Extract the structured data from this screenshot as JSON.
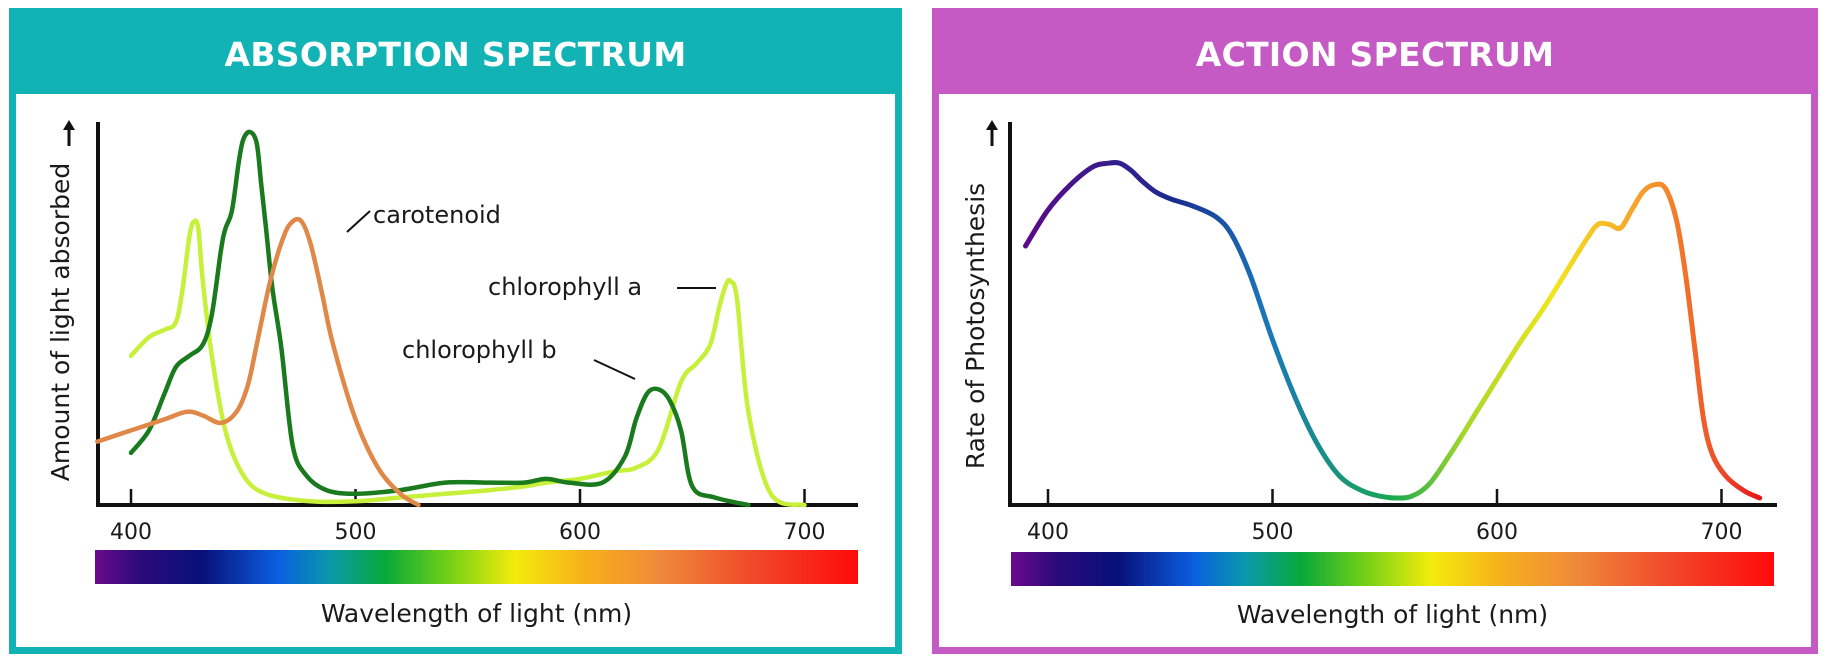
{
  "colors": {
    "absorption_frame": "#12b3b5",
    "action_frame": "#c65ac4",
    "chlorophyll_a": "#c7f03a",
    "chlorophyll_b": "#1a7a1e",
    "carotenoid": "#e08848"
  },
  "chart_data": [
    {
      "type": "line",
      "title": "ABSORPTION SPECTRUM",
      "xlabel": "Wavelength of light (nm)",
      "ylabel": "Amount of light absorbed",
      "xlim": [
        385,
        720
      ],
      "ylim": [
        0,
        100
      ],
      "xticks": [
        "400",
        "500",
        "600",
        "700"
      ],
      "tick_values": [
        400,
        500,
        600,
        700
      ],
      "annotations": [
        {
          "text": "carotenoid",
          "series": "carotenoid"
        },
        {
          "text": "chlorophyll a",
          "series": "chlorophyll a"
        },
        {
          "text": "chlorophyll b",
          "series": "chlorophyll b"
        }
      ],
      "series": [
        {
          "name": "chlorophyll a",
          "x": [
            400,
            408,
            415,
            420,
            423,
            426,
            428,
            430,
            432,
            436,
            442,
            450,
            460,
            480,
            500,
            520,
            540,
            560,
            575,
            585,
            600,
            615,
            625,
            635,
            645,
            652,
            658,
            662,
            665,
            667,
            670,
            675,
            685,
            700
          ],
          "y": [
            40,
            45,
            47,
            49,
            58,
            72,
            76,
            74,
            60,
            40,
            20,
            8,
            3,
            1,
            1,
            2,
            3,
            4,
            5,
            6,
            7,
            9,
            10,
            15,
            33,
            38,
            43,
            53,
            59,
            60,
            55,
            25,
            3,
            0
          ]
        },
        {
          "name": "chlorophyll b",
          "x": [
            400,
            408,
            415,
            420,
            426,
            432,
            436,
            440,
            442,
            445,
            448,
            450,
            453,
            456,
            458,
            460,
            463,
            467,
            472,
            478,
            487,
            500,
            520,
            540,
            560,
            575,
            585,
            595,
            610,
            620,
            625,
            630,
            635,
            640,
            645,
            650,
            660,
            675
          ],
          "y": [
            14,
            20,
            30,
            37,
            40,
            43,
            51,
            68,
            74,
            79,
            92,
            98,
            100,
            97,
            86,
            75,
            58,
            42,
            16,
            8,
            4,
            3,
            4,
            6,
            6,
            6,
            7,
            6,
            6,
            13,
            23,
            30,
            31,
            28,
            20,
            5,
            2,
            0
          ]
        },
        {
          "name": "carotenoid",
          "x": [
            385,
            400,
            415,
            425,
            432,
            440,
            447,
            452,
            456,
            462,
            468,
            472,
            476,
            480,
            485,
            490,
            500,
            510,
            520,
            528
          ],
          "y": [
            17,
            20,
            23,
            25,
            24,
            22,
            25,
            32,
            43,
            60,
            72,
            76,
            76,
            70,
            57,
            43,
            23,
            10,
            3,
            0
          ]
        }
      ]
    },
    {
      "type": "line",
      "title": "ACTION SPECTRUM",
      "xlabel": "Wavelength of light (nm)",
      "ylabel": "Rate of Photosynthesis",
      "xlim": [
        385,
        720
      ],
      "ylim": [
        0,
        100
      ],
      "xticks": [
        "400",
        "500",
        "600",
        "700"
      ],
      "tick_values": [
        400,
        500,
        600,
        700
      ],
      "series": [
        {
          "name": "rate of photosynthesis",
          "x": [
            390,
            400,
            410,
            420,
            427,
            432,
            437,
            442,
            448,
            455,
            465,
            475,
            482,
            490,
            500,
            510,
            520,
            530,
            540,
            548,
            555,
            562,
            570,
            580,
            590,
            600,
            610,
            620,
            630,
            640,
            645,
            650,
            655,
            660,
            665,
            670,
            675,
            680,
            684,
            688,
            692,
            696,
            702,
            710,
            717
          ],
          "y": [
            70,
            80,
            87,
            92,
            93,
            93,
            91,
            88,
            85,
            83,
            81,
            78,
            73,
            62,
            44,
            28,
            15,
            6,
            2,
            0.5,
            0,
            0.5,
            4,
            13,
            23,
            33,
            43,
            52,
            62,
            72,
            76,
            76,
            75,
            80,
            85,
            87,
            86,
            77,
            62,
            42,
            22,
            12,
            6,
            2,
            0
          ]
        }
      ]
    }
  ]
}
